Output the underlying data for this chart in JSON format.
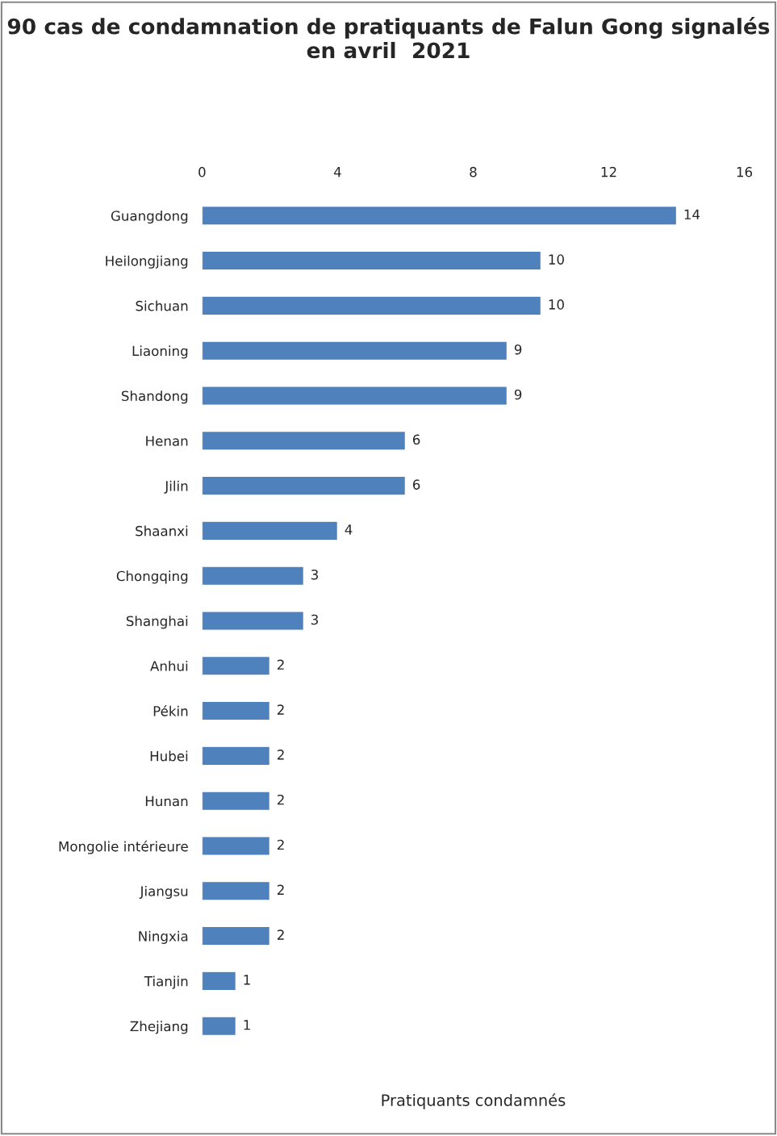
{
  "chart_data": {
    "type": "bar",
    "orientation": "horizontal",
    "title": "90 cas de condamnation de pratiquants de Falun Gong signalés en avril  2021",
    "xlabel": "Pratiquants condamnés",
    "categories": [
      "Guangdong",
      "Heilongjiang",
      "Sichuan",
      "Liaoning",
      "Shandong",
      "Henan",
      "Jilin",
      "Shaanxi",
      "Chongqing",
      "Shanghai",
      "Anhui",
      "Pékin",
      "Hubei",
      "Hunan",
      "Mongolie intérieure",
      "Jiangsu",
      "Ningxia",
      "Tianjin",
      "Zhejiang"
    ],
    "values": [
      14,
      10,
      10,
      9,
      9,
      6,
      6,
      4,
      3,
      3,
      2,
      2,
      2,
      2,
      2,
      2,
      2,
      1,
      1
    ],
    "color": "#4f81bd",
    "xlim": [
      0,
      16
    ],
    "xticks": [
      0,
      4,
      8,
      12,
      16
    ],
    "grid": false,
    "data_labels": true,
    "legend": false
  }
}
